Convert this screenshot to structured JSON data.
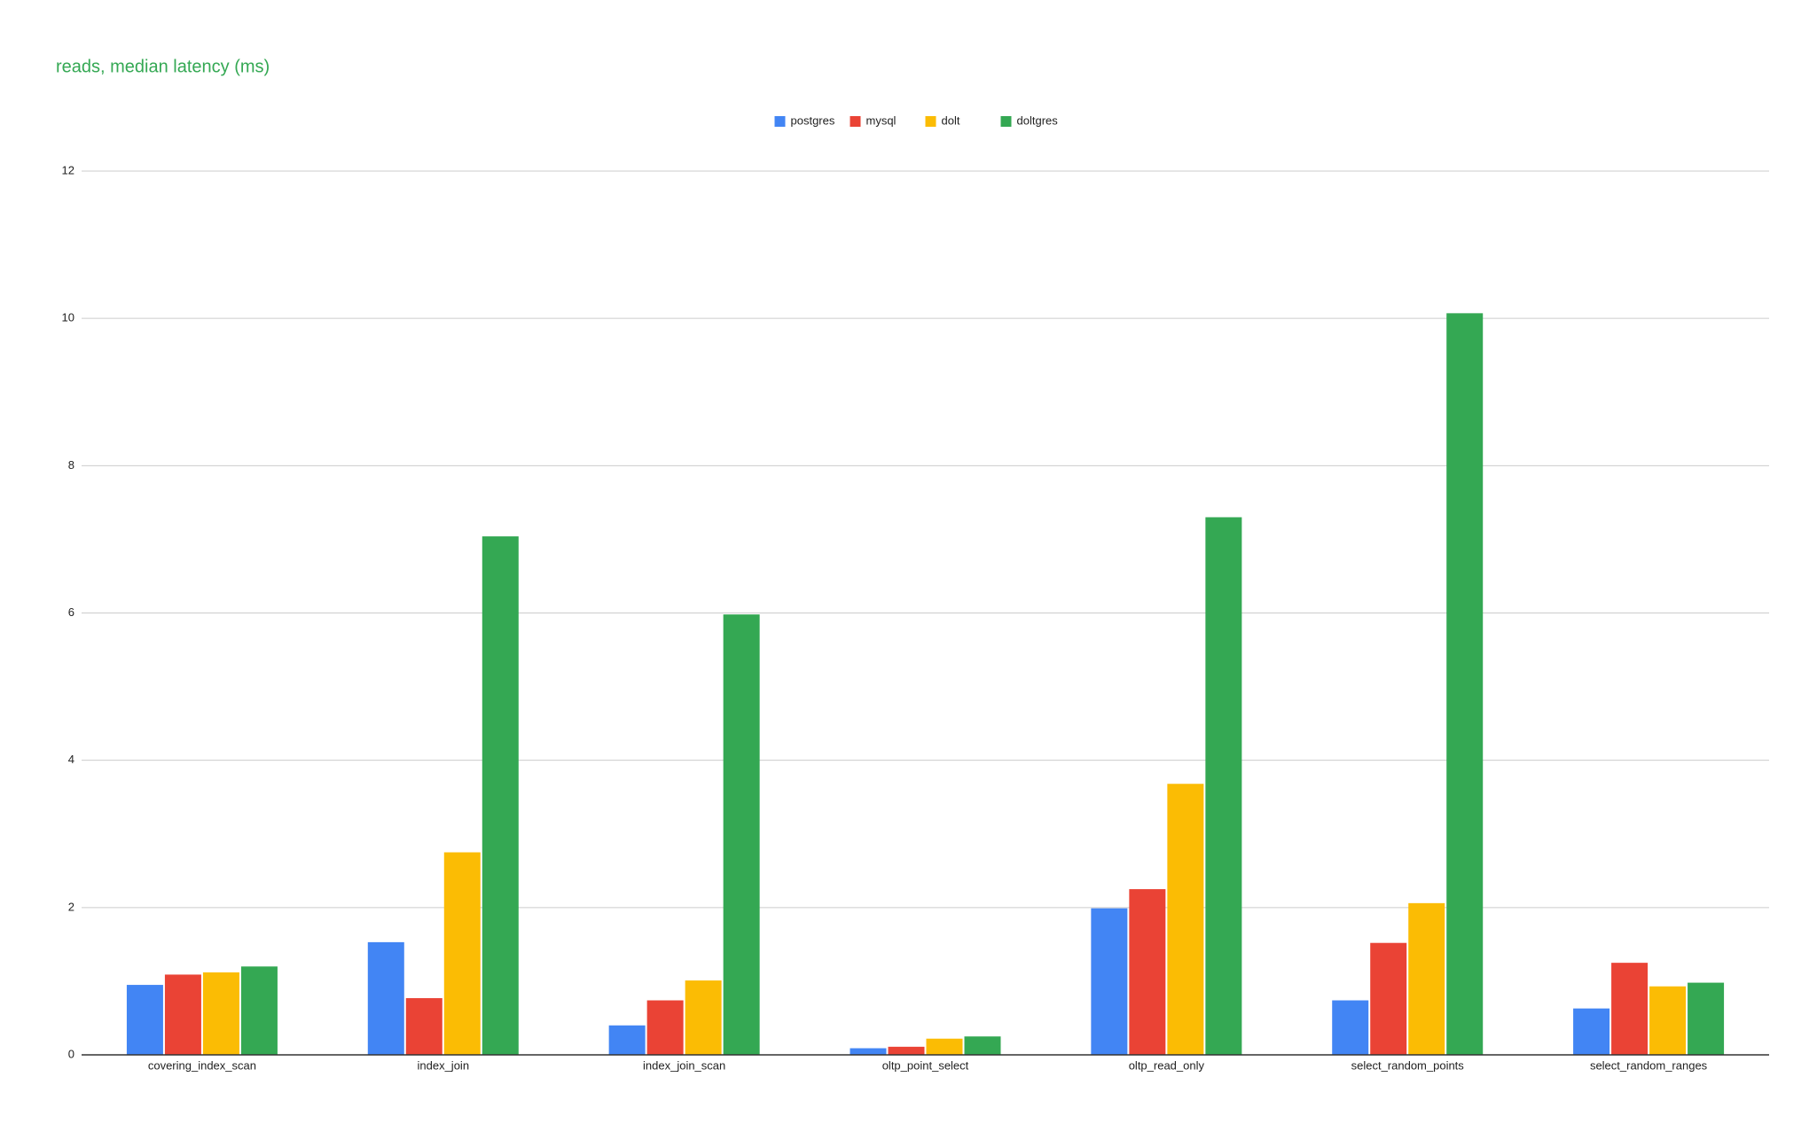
{
  "chart_data": {
    "type": "bar",
    "title": "reads, median latency (ms)",
    "title_color": "#34a853",
    "categories": [
      "covering_index_scan",
      "index_join",
      "index_join_scan",
      "oltp_point_select",
      "oltp_read_only",
      "select_random_points",
      "select_random_ranges"
    ],
    "series": [
      {
        "name": "postgres",
        "color": "#4285f4",
        "values": [
          0.95,
          1.53,
          0.4,
          0.09,
          1.99,
          0.74,
          0.63
        ]
      },
      {
        "name": "mysql",
        "color": "#ea4335",
        "values": [
          1.09,
          0.77,
          0.74,
          0.11,
          2.25,
          1.52,
          1.25
        ]
      },
      {
        "name": "dolt",
        "color": "#fbbc04",
        "values": [
          1.12,
          2.75,
          1.01,
          0.22,
          3.68,
          2.06,
          0.93
        ]
      },
      {
        "name": "doltgres",
        "color": "#34a853",
        "values": [
          1.2,
          7.04,
          5.98,
          0.25,
          7.3,
          10.07,
          0.98
        ]
      }
    ],
    "ylim": [
      0,
      12
    ],
    "yticks": [
      0,
      2,
      4,
      6,
      8,
      10,
      12
    ],
    "grid": true,
    "legend": "top"
  }
}
